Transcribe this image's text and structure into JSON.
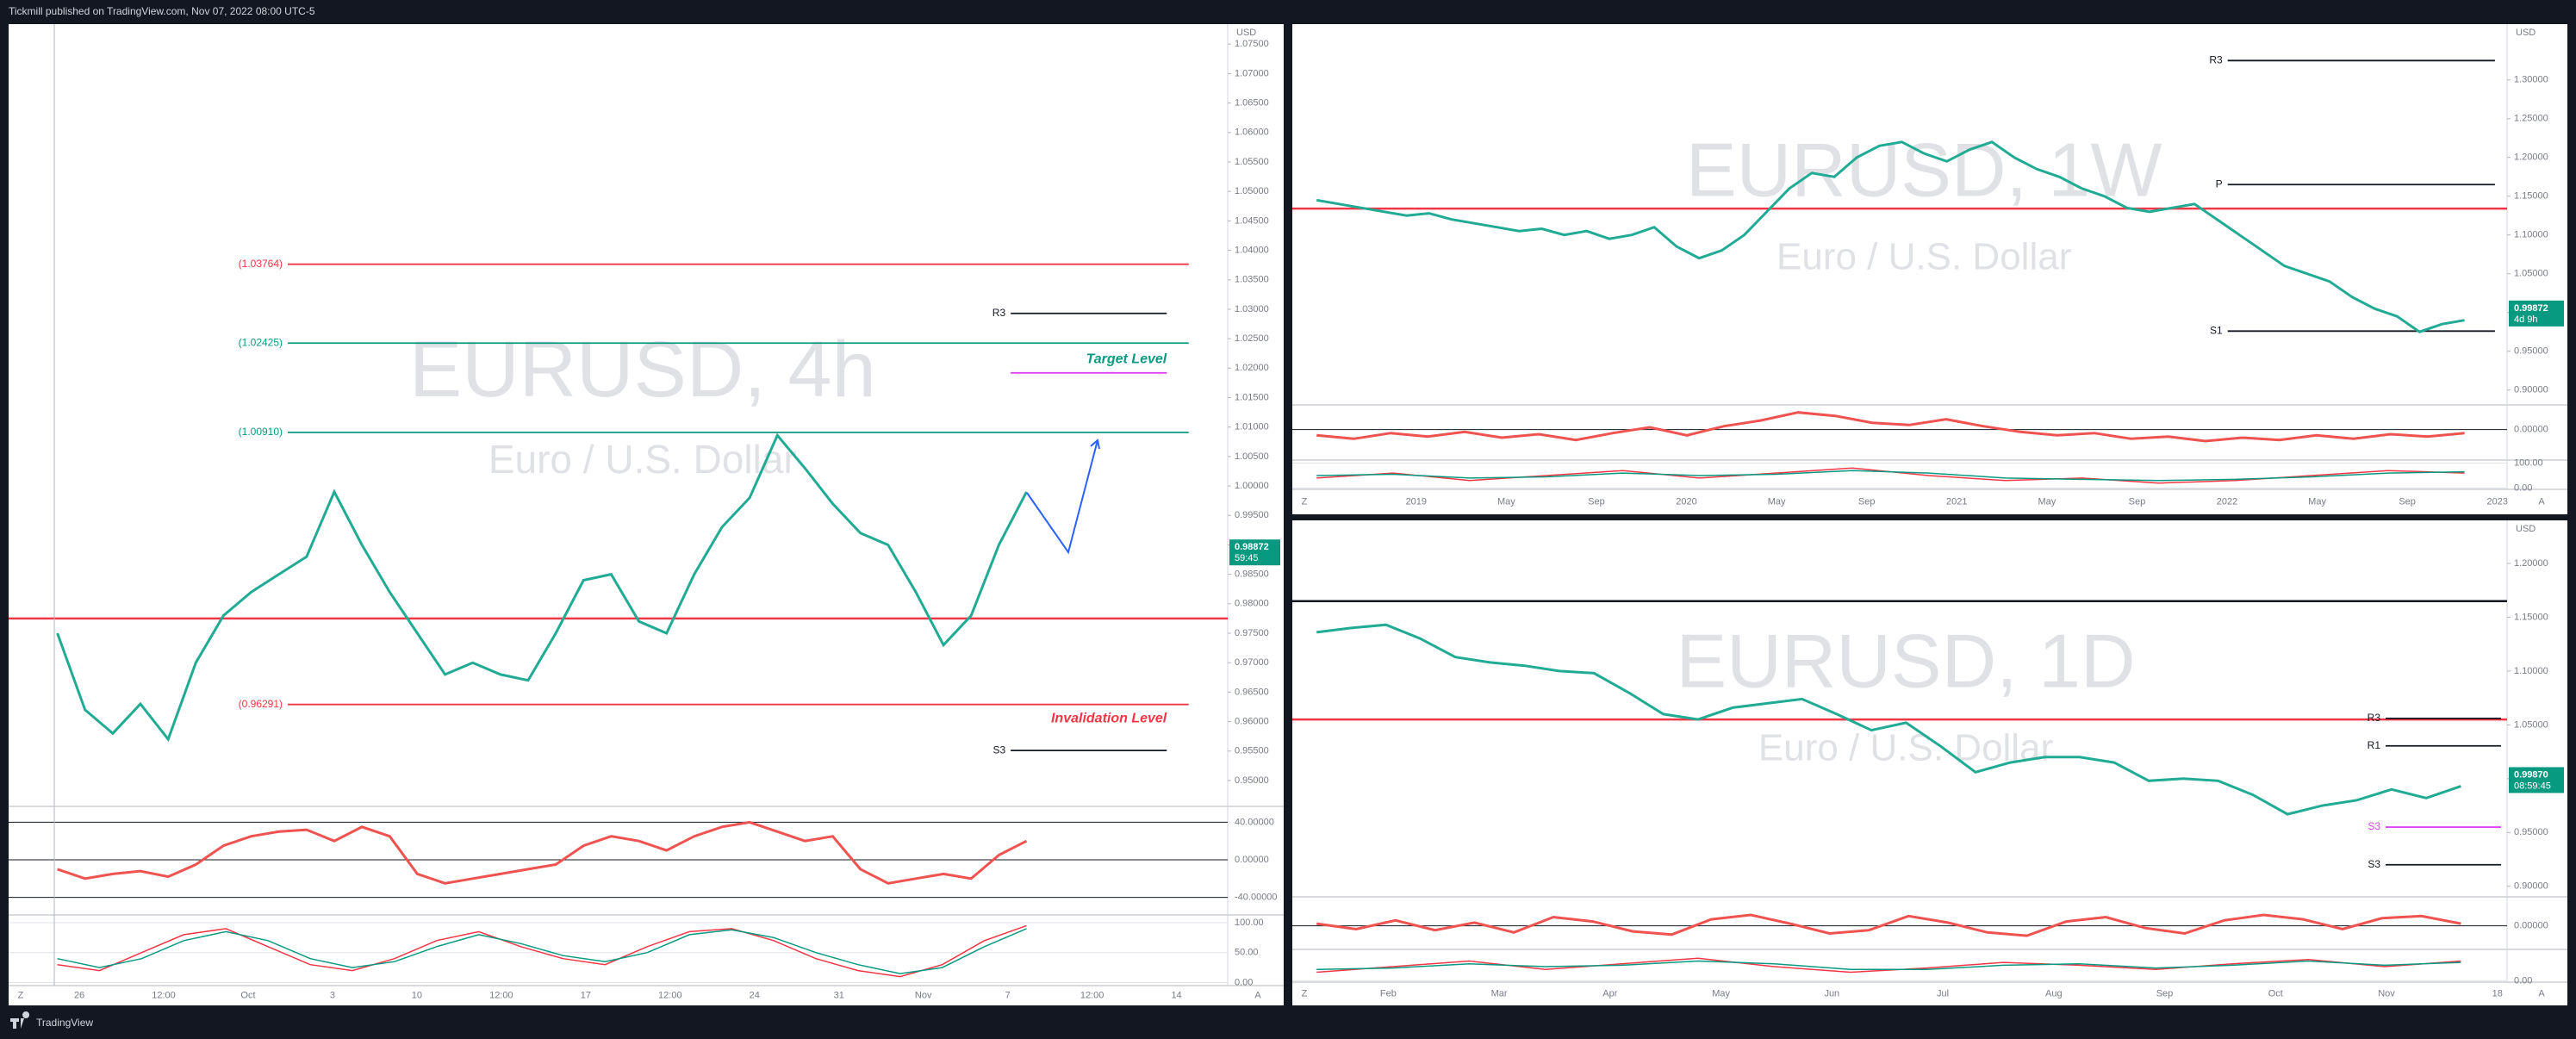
{
  "header": {
    "title": "Tickmill published on TradingView.com, Nov 07, 2022 08:00 UTC-5"
  },
  "footer": {
    "brand": "TradingView"
  },
  "chart_data": [
    {
      "type": "line",
      "title": "EURUSD, 4h",
      "subtitle": "Euro / U.S. Dollar",
      "currency": "USD",
      "axis_buttons": [
        "Z",
        "A"
      ],
      "ylim": [
        0.9459,
        1.0784
      ],
      "yticks": [
        {
          "value": 0.95,
          "label": "0.95000"
        },
        {
          "value": 0.955,
          "label": "0.95500"
        },
        {
          "value": 0.96,
          "label": "0.96000"
        },
        {
          "value": 0.965,
          "label": "0.96500"
        },
        {
          "value": 0.97,
          "label": "0.97000"
        },
        {
          "value": 0.975,
          "label": "0.97500"
        },
        {
          "value": 0.98,
          "label": "0.98000"
        },
        {
          "value": 0.985,
          "label": "0.98500"
        },
        {
          "value": 0.99,
          "label": "0.99000"
        },
        {
          "value": 0.995,
          "label": "0.99500"
        },
        {
          "value": 1.0,
          "label": "1.00000"
        },
        {
          "value": 1.005,
          "label": "1.00500"
        },
        {
          "value": 1.01,
          "label": "1.01000"
        },
        {
          "value": 1.015,
          "label": "1.01500"
        },
        {
          "value": 1.02,
          "label": "1.02000"
        },
        {
          "value": 1.025,
          "label": "1.02500"
        },
        {
          "value": 1.03,
          "label": "1.03000"
        },
        {
          "value": 1.035,
          "label": "1.03500"
        },
        {
          "value": 1.04,
          "label": "1.04000"
        },
        {
          "value": 1.045,
          "label": "1.04500"
        },
        {
          "value": 1.05,
          "label": "1.05000"
        },
        {
          "value": 1.055,
          "label": "1.05500"
        },
        {
          "value": 1.06,
          "label": "1.06000"
        },
        {
          "value": 1.065,
          "label": "1.06500"
        },
        {
          "value": 1.07,
          "label": "1.07000"
        },
        {
          "value": 1.075,
          "label": "1.07500"
        }
      ],
      "time_labels": [
        "26",
        "12:00",
        "Oct",
        "3",
        "10",
        "12:00",
        "17",
        "12:00",
        "24",
        "31",
        "Nov",
        "7",
        "12:00",
        "14"
      ],
      "color": "#22ab94",
      "values": [
        0.975,
        0.962,
        0.958,
        0.963,
        0.957,
        0.97,
        0.978,
        0.982,
        0.985,
        0.988,
        0.999,
        0.99,
        0.982,
        0.975,
        0.968,
        0.97,
        0.968,
        0.967,
        0.975,
        0.984,
        0.985,
        0.977,
        0.975,
        0.985,
        0.993,
        0.998,
        1.0086,
        1.003,
        0.997,
        0.992,
        0.99,
        0.982,
        0.973,
        0.978,
        0.99,
        0.999
      ],
      "levels": [
        {
          "value": 1.03764,
          "label": "(1.03764)",
          "color": "#f23645",
          "kind": "fib"
        },
        {
          "value": 1.02425,
          "label": "(1.02425)",
          "color": "#089981",
          "kind": "fib"
        },
        {
          "value": 1.0091,
          "label": "(1.00910)",
          "color": "#089981",
          "kind": "fib"
        },
        {
          "value": 0.96291,
          "label": "(0.96291)",
          "color": "#f23645",
          "kind": "fib"
        },
        {
          "value": 0.9775,
          "color": "#f23645",
          "kind": "line"
        },
        {
          "value": 1.0293,
          "label": "R3",
          "color": "#131722",
          "kind": "pivot"
        },
        {
          "value": 0.9551,
          "label": "S3",
          "color": "#131722",
          "kind": "pivot"
        },
        {
          "value": 1.0192,
          "color": "#e040fb",
          "kind": "pivot"
        }
      ],
      "annotations": [
        {
          "text": "Target Level",
          "value": 1.0215,
          "color": "#089981"
        },
        {
          "text": "Invalidation Level",
          "value": 0.9605,
          "color": "#f23645"
        }
      ],
      "last_price": 0.98872,
      "countdown": "59:45",
      "badge_color": "#089981",
      "oscillator": {
        "color": "#ef5350",
        "ylim": [
          -55,
          55
        ],
        "yticks": [
          {
            "value": 40,
            "label": "40.00000"
          },
          {
            "value": 0,
            "label": "0.00000"
          },
          {
            "value": -40,
            "label": "-40.00000"
          }
        ],
        "values": [
          -10,
          -20,
          -15,
          -12,
          -18,
          -5,
          15,
          25,
          30,
          32,
          20,
          35,
          25,
          -15,
          -25,
          -20,
          -15,
          -10,
          -5,
          15,
          25,
          20,
          10,
          25,
          35,
          40,
          30,
          20,
          25,
          -10,
          -25,
          -20,
          -15,
          -20,
          5,
          20
        ]
      },
      "stochastic": {
        "ylim": [
          -5,
          110
        ],
        "yticks": [
          {
            "value": 100,
            "label": "100.00"
          },
          {
            "value": 50,
            "label": "50.00"
          },
          {
            "value": 0,
            "label": "0.00"
          }
        ],
        "series": [
          {
            "color": "#f23645",
            "values": [
              30,
              20,
              50,
              80,
              90,
              60,
              30,
              20,
              40,
              70,
              85,
              60,
              40,
              30,
              60,
              85,
              90,
              70,
              40,
              20,
              10,
              30,
              70,
              95
            ]
          },
          {
            "color": "#089981",
            "values": [
              40,
              25,
              40,
              70,
              85,
              70,
              40,
              25,
              35,
              60,
              80,
              65,
              45,
              35,
              50,
              80,
              88,
              75,
              50,
              30,
              15,
              25,
              60,
              90
            ]
          }
        ]
      }
    },
    {
      "type": "line",
      "title": "EURUSD, 1W",
      "subtitle": "Euro / U.S. Dollar",
      "currency": "USD",
      "axis_buttons": [
        "Z",
        "A"
      ],
      "ylim": [
        0.883,
        1.372
      ],
      "yticks": [
        {
          "value": 0.9,
          "label": "0.90000"
        },
        {
          "value": 0.95,
          "label": "0.95000"
        },
        {
          "value": 1.0,
          "label": "1.00000"
        },
        {
          "value": 1.05,
          "label": "1.05000"
        },
        {
          "value": 1.1,
          "label": "1.10000"
        },
        {
          "value": 1.15,
          "label": "1.15000"
        },
        {
          "value": 1.2,
          "label": "1.20000"
        },
        {
          "value": 1.25,
          "label": "1.25000"
        },
        {
          "value": 1.3,
          "label": "1.30000"
        }
      ],
      "time_labels": [
        "2019",
        "May",
        "Sep",
        "2020",
        "May",
        "Sep",
        "2021",
        "May",
        "Sep",
        "2022",
        "May",
        "Sep",
        "2023"
      ],
      "color": "#22ab94",
      "values": [
        1.145,
        1.14,
        1.135,
        1.13,
        1.125,
        1.128,
        1.12,
        1.115,
        1.11,
        1.105,
        1.108,
        1.1,
        1.105,
        1.095,
        1.1,
        1.11,
        1.085,
        1.07,
        1.08,
        1.1,
        1.13,
        1.16,
        1.18,
        1.175,
        1.2,
        1.215,
        1.22,
        1.205,
        1.195,
        1.21,
        1.22,
        1.2,
        1.185,
        1.175,
        1.16,
        1.15,
        1.135,
        1.13,
        1.135,
        1.14,
        1.12,
        1.1,
        1.08,
        1.06,
        1.05,
        1.04,
        1.02,
        1.005,
        0.995,
        0.975,
        0.985,
        0.99
      ],
      "levels": [
        {
          "value": 1.325,
          "label": "R3",
          "color": "#131722",
          "kind": "pivot"
        },
        {
          "value": 1.165,
          "label": "P",
          "color": "#131722",
          "kind": "pivot"
        },
        {
          "value": 1.134,
          "color": "#f23645",
          "kind": "line"
        },
        {
          "value": 0.976,
          "label": "S1",
          "color": "#131722",
          "kind": "pivot"
        }
      ],
      "last_price": 0.99872,
      "countdown": "4d 9h",
      "badge_color": "#089981",
      "oscillator": {
        "color": "#ef5350",
        "ylim": [
          -2.5,
          2
        ],
        "yticks": [
          {
            "value": 0,
            "label": "0.00000"
          }
        ],
        "values": [
          -0.5,
          -0.8,
          -0.3,
          -0.6,
          -0.2,
          -0.7,
          -0.4,
          -0.9,
          -0.3,
          0.2,
          -0.5,
          0.3,
          0.8,
          1.5,
          1.2,
          0.6,
          0.4,
          0.9,
          0.3,
          -0.2,
          -0.5,
          -0.3,
          -0.8,
          -0.6,
          -1.0,
          -0.7,
          -0.9,
          -0.5,
          -0.8,
          -0.4,
          -0.6,
          -0.3
        ]
      },
      "stochastic": {
        "ylim": [
          -5,
          105
        ],
        "yticks": [
          {
            "value": 100,
            "label": "100.00"
          },
          {
            "value": 0,
            "label": "0.00"
          }
        ],
        "series": [
          {
            "color": "#f23645",
            "values": [
              40,
              60,
              30,
              50,
              70,
              40,
              60,
              80,
              50,
              30,
              40,
              20,
              30,
              50,
              70,
              60
            ]
          },
          {
            "color": "#089981",
            "values": [
              50,
              55,
              40,
              45,
              60,
              50,
              55,
              70,
              60,
              40,
              35,
              30,
              35,
              45,
              60,
              65
            ]
          }
        ]
      }
    },
    {
      "type": "line",
      "title": "EURUSD, 1D",
      "subtitle": "Euro / U.S. Dollar",
      "currency": "USD",
      "axis_buttons": [
        "Z",
        "A"
      ],
      "ylim": [
        0.891,
        1.24
      ],
      "yticks": [
        {
          "value": 0.9,
          "label": "0.90000"
        },
        {
          "value": 0.95,
          "label": "0.95000"
        },
        {
          "value": 1.0,
          "label": "1.00000"
        },
        {
          "value": 1.05,
          "label": "1.05000"
        },
        {
          "value": 1.1,
          "label": "1.10000"
        },
        {
          "value": 1.15,
          "label": "1.15000"
        },
        {
          "value": 1.2,
          "label": "1.20000"
        }
      ],
      "time_labels": [
        "Feb",
        "Mar",
        "Apr",
        "May",
        "Jun",
        "Jul",
        "Aug",
        "Sep",
        "Oct",
        "Nov",
        "18"
      ],
      "color": "#22ab94",
      "values": [
        1.136,
        1.14,
        1.143,
        1.13,
        1.113,
        1.108,
        1.105,
        1.1,
        1.098,
        1.08,
        1.06,
        1.055,
        1.066,
        1.07,
        1.074,
        1.06,
        1.045,
        1.052,
        1.03,
        1.006,
        1.015,
        1.02,
        1.02,
        1.015,
        0.998,
        1.0,
        0.998,
        0.985,
        0.967,
        0.975,
        0.98,
        0.99,
        0.982,
        0.993
      ],
      "levels": [
        {
          "value": 1.165,
          "color": "#131722",
          "kind": "line"
        },
        {
          "value": 1.055,
          "color": "#f23645",
          "kind": "line"
        },
        {
          "value": 1.056,
          "label": "R3",
          "color": "#131722",
          "kind": "pivot"
        },
        {
          "value": 1.0305,
          "label": "R1",
          "color": "#131722",
          "kind": "pivot"
        },
        {
          "value": 0.955,
          "label": "S3",
          "color": "#e040fb",
          "kind": "pivot"
        },
        {
          "value": 0.92,
          "label": "S3",
          "color": "#131722",
          "kind": "pivot"
        }
      ],
      "last_price": {
        "value": 0.9987,
        "label": "0.99870"
      },
      "countdown": "08:59:45",
      "badge_color": "#089981",
      "oscillator": {
        "color": "#ef5350",
        "ylim": [
          -2,
          2.5
        ],
        "yticks": [
          {
            "value": 0,
            "label": "0.00000"
          }
        ],
        "values": [
          0.2,
          -0.3,
          0.5,
          -0.4,
          0.3,
          -0.6,
          0.8,
          0.4,
          -0.5,
          -0.8,
          0.6,
          1.0,
          0.2,
          -0.7,
          -0.4,
          0.9,
          0.3,
          -0.6,
          -0.9,
          0.4,
          0.8,
          -0.2,
          -0.7,
          0.5,
          1.0,
          0.6,
          -0.3,
          0.7,
          0.9,
          0.2
        ]
      },
      "stochastic": {
        "ylim": [
          -5,
          105
        ],
        "yticks": [
          {
            "value": 0,
            "label": "0.00"
          }
        ],
        "series": [
          {
            "color": "#f23645",
            "values": [
              30,
              50,
              70,
              40,
              60,
              80,
              50,
              30,
              45,
              65,
              55,
              40,
              60,
              75,
              50,
              70
            ]
          },
          {
            "color": "#089981",
            "values": [
              40,
              45,
              60,
              50,
              55,
              70,
              60,
              40,
              40,
              55,
              60,
              45,
              55,
              70,
              55,
              65
            ]
          }
        ]
      }
    }
  ]
}
